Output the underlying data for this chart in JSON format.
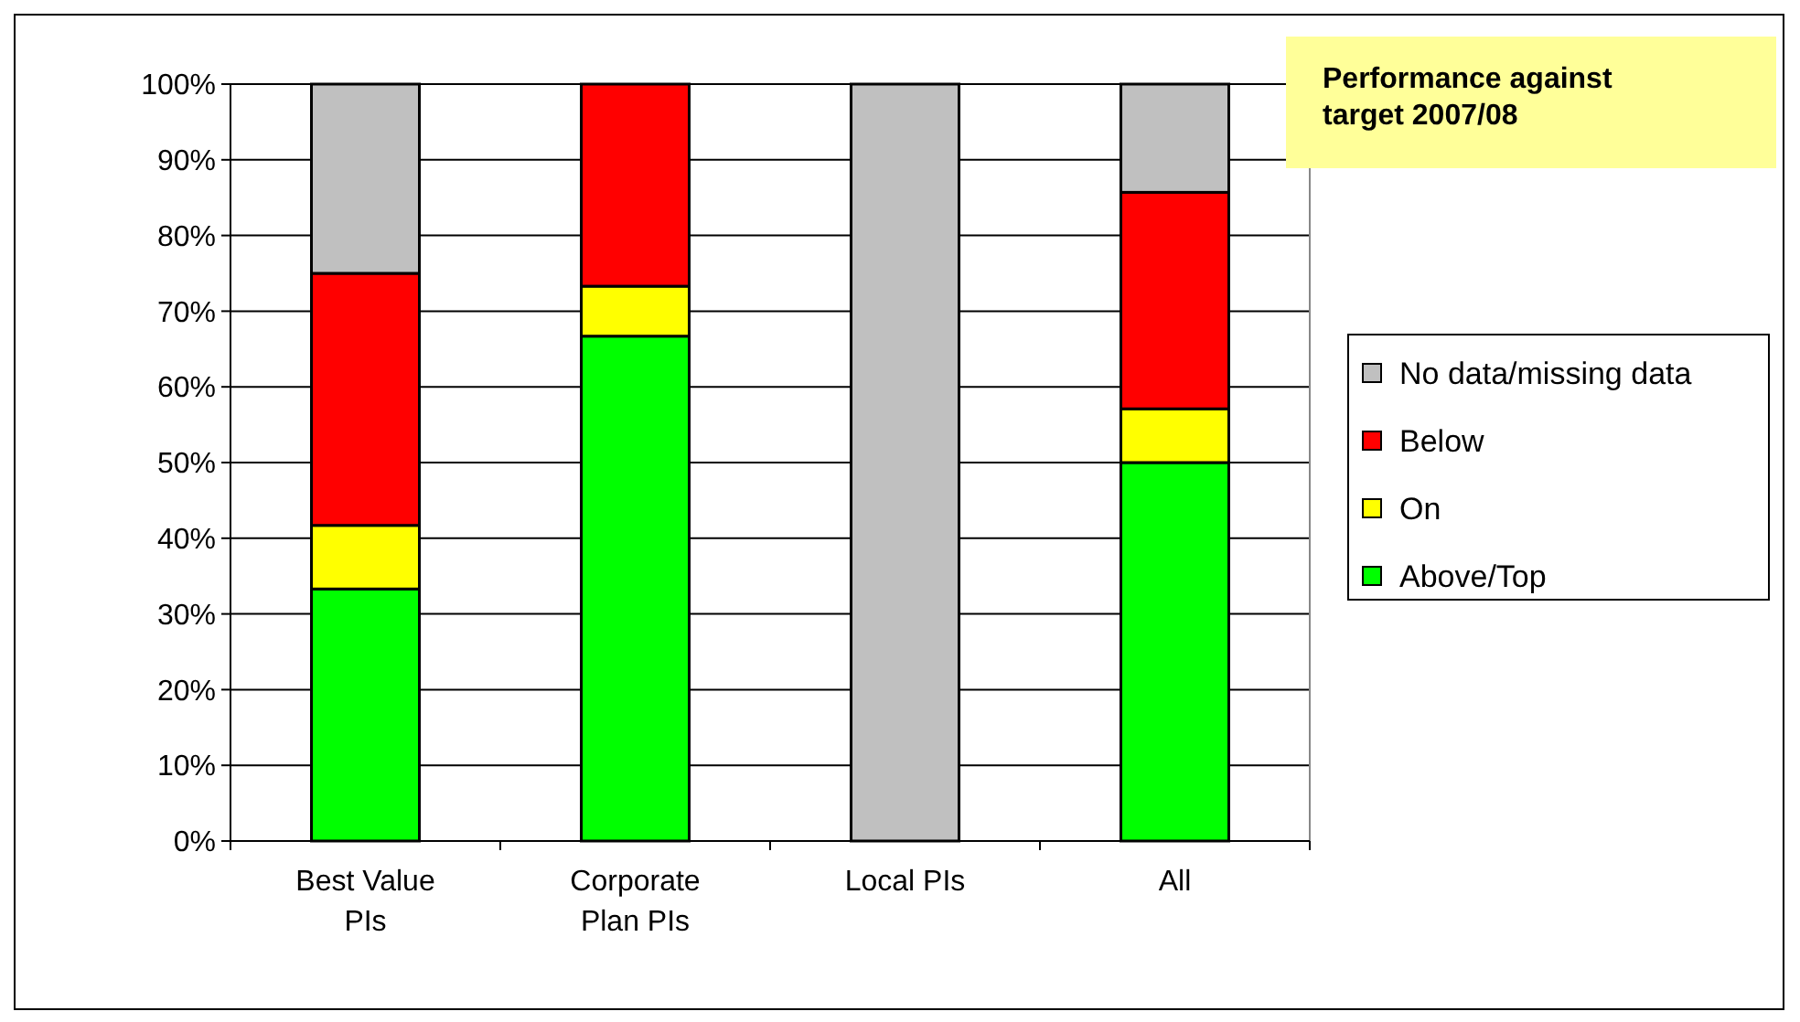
{
  "chart_data": {
    "type": "bar",
    "title": "Performance against target 2007/08",
    "categories": [
      "Best Value PIs",
      "Corporate Plan PIs",
      "Local PIs",
      "All"
    ],
    "stacked": true,
    "series": [
      {
        "name": "Above/Top",
        "color": "#00ff00",
        "values": [
          33.3,
          66.7,
          0,
          50
        ]
      },
      {
        "name": "On",
        "color": "#ffff00",
        "values": [
          8.4,
          6.6,
          0,
          7.1
        ]
      },
      {
        "name": "Below",
        "color": "#ff0000",
        "values": [
          33.3,
          26.7,
          0,
          28.6
        ]
      },
      {
        "name": "No data/missing data",
        "color": "#c0c0c0",
        "values": [
          25,
          0,
          100,
          14.3
        ]
      }
    ],
    "ylim": [
      0,
      100
    ],
    "yticks": [
      {
        "value": 0,
        "label": "0%"
      },
      {
        "value": 10,
        "label": "10%"
      },
      {
        "value": 20,
        "label": "20%"
      },
      {
        "value": 30,
        "label": "30%"
      },
      {
        "value": 40,
        "label": "40%"
      },
      {
        "value": 50,
        "label": "50%"
      },
      {
        "value": 60,
        "label": "60%"
      },
      {
        "value": 70,
        "label": "70%"
      },
      {
        "value": 80,
        "label": "80%"
      },
      {
        "value": 90,
        "label": "90%"
      },
      {
        "value": 100,
        "label": "100%"
      }
    ],
    "grid": "y",
    "legend": "right"
  }
}
